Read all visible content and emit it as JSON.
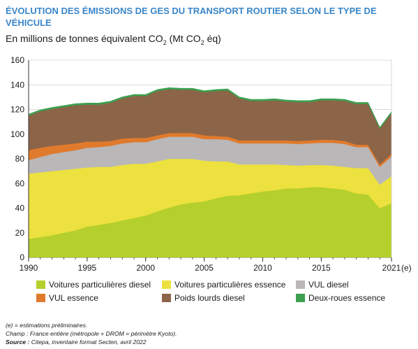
{
  "title": "ÉVOLUTION DES ÉMISSIONS DE GES DU TRANSPORT ROUTIER SELON LE TYPE DE VÉHICULE",
  "subtitle": {
    "prefix": "En millions de tonnes équivalent CO",
    "sub1": "2",
    "middle": " (Mt CO",
    "sub2": "2",
    "suffix": " éq)"
  },
  "notes": {
    "line1": "(e) = estimations préliminaires.",
    "line2": "Champ : France entière (métropole + DROM = périmètre Kyoto).",
    "source_label": "Source :",
    "source_text": " Citepa, inventaire format Secten, avril 2022"
  },
  "chart_data": {
    "type": "area",
    "stacked": true,
    "x": [
      1990,
      1991,
      1992,
      1993,
      1994,
      1995,
      1996,
      1997,
      1998,
      1999,
      2000,
      2001,
      2002,
      2003,
      2004,
      2005,
      2006,
      2007,
      2008,
      2009,
      2010,
      2011,
      2012,
      2013,
      2014,
      2015,
      2016,
      2017,
      2018,
      2019,
      2020,
      2021
    ],
    "x_tick_labels": [
      "1990",
      "1995",
      "2000",
      "2005",
      "2010",
      "2015",
      "2021"
    ],
    "x_tick_values": [
      1990,
      1995,
      2000,
      2005,
      2010,
      2015,
      2021
    ],
    "x_suffix_label": "(e)",
    "y_ticks": [
      0,
      20,
      40,
      60,
      80,
      100,
      120,
      140,
      160
    ],
    "ylim": [
      0,
      160
    ],
    "grid": true,
    "legend_position": "bottom",
    "series": [
      {
        "name": "Voitures particulières diesel",
        "color": "#b5cf2c",
        "values": [
          15,
          16.5,
          18,
          20,
          22,
          25,
          26.5,
          28,
          30,
          32,
          34,
          37.5,
          40.5,
          43,
          44.5,
          45.5,
          48,
          50,
          50.5,
          52,
          53.5,
          54.5,
          56,
          56,
          57,
          57,
          56,
          55,
          52,
          51,
          40,
          44
        ]
      },
      {
        "name": "Voitures particulières essence",
        "color": "#ece13f",
        "values": [
          53,
          52.5,
          52,
          51,
          50,
          48,
          47,
          45.5,
          45,
          44,
          42,
          40.5,
          39.5,
          37,
          35.5,
          33,
          30,
          28,
          25,
          23.5,
          22,
          21,
          19,
          18.5,
          18,
          18,
          18.5,
          18.5,
          20.5,
          21.5,
          19,
          22
        ]
      },
      {
        "name": "VUL diesel",
        "color": "#b9b7b8",
        "values": [
          11,
          12.5,
          14,
          14.5,
          15,
          16,
          16,
          17,
          17.5,
          17.5,
          17.5,
          18,
          18,
          18,
          18,
          17.5,
          18,
          17.5,
          17,
          17,
          17,
          17,
          17.5,
          17.5,
          17.5,
          18,
          18.5,
          18.5,
          17,
          17,
          14.5,
          16
        ]
      },
      {
        "name": "VUL essence",
        "color": "#e07a2c",
        "values": [
          8,
          7.5,
          6.5,
          6,
          5.5,
          5,
          4.5,
          4,
          4,
          3.5,
          3.5,
          3,
          3,
          3,
          3,
          3,
          2.5,
          2.5,
          2.5,
          2.5,
          2.5,
          2.5,
          2.5,
          2.5,
          2.5,
          2.5,
          2.5,
          2.5,
          2,
          2,
          2,
          2
        ]
      },
      {
        "name": "Poids lourds diesel",
        "color": "#8c6448",
        "values": [
          28,
          29.5,
          30,
          30.5,
          31,
          30,
          30,
          31,
          32.5,
          34,
          34,
          36,
          35.5,
          35,
          35,
          35,
          36.5,
          37.5,
          34,
          32,
          32,
          32.5,
          31.5,
          31.5,
          31,
          32,
          32,
          32.5,
          33,
          33,
          29,
          33
        ]
      },
      {
        "name": "Deux-roues essence",
        "color": "#3d9f4f",
        "values": [
          1.2,
          1.2,
          1.2,
          1.2,
          1.2,
          1.2,
          1.2,
          1.2,
          1.2,
          1.2,
          1.2,
          1.2,
          1.2,
          1.2,
          1.2,
          1.2,
          1.2,
          1.2,
          1.2,
          1.2,
          1.2,
          1.2,
          1.2,
          1.2,
          1.2,
          1.2,
          1.2,
          1.2,
          1.2,
          1.2,
          1,
          1.2
        ]
      }
    ]
  }
}
